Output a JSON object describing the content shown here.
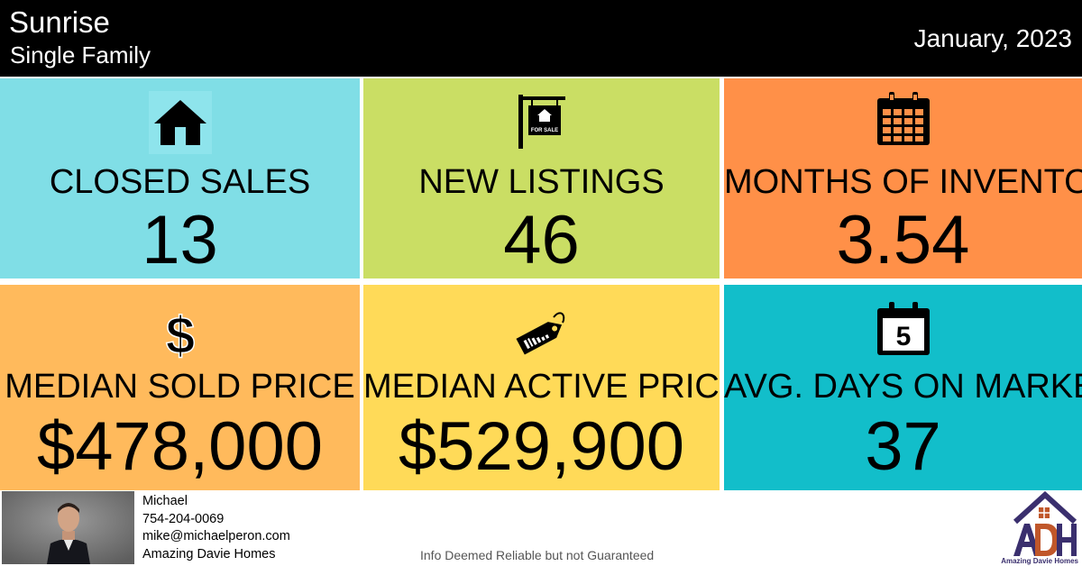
{
  "header": {
    "city": "Sunrise",
    "property_type": "Single Family",
    "period": "January, 2023"
  },
  "colors": {
    "header_bg": "#000000",
    "closed_sales_bg": "#80DEE6",
    "new_listings_bg": "#CADE64",
    "months_inventory_bg": "#FF9048",
    "median_sold_bg": "#FFBA5C",
    "median_active_bg": "#FFDA58",
    "avg_days_bg": "#12BECA",
    "logo_purple": "#3a2f6e",
    "logo_orange": "#c0572a"
  },
  "stats": [
    {
      "id": "closed-sales",
      "icon": "house-icon",
      "label": "CLOSED SALES",
      "value": "13"
    },
    {
      "id": "new-listings",
      "icon": "for-sale-sign-icon",
      "label": "NEW LISTINGS",
      "value": "46",
      "icon_text": "FOR SALE"
    },
    {
      "id": "months-inventory",
      "icon": "calendar-icon",
      "label": "MONTHS OF INVENTORY",
      "value": "3.54"
    },
    {
      "id": "median-sold-price",
      "icon": "dollar-sign-icon",
      "label": "MEDIAN SOLD PRICE",
      "value": "$478,000",
      "icon_text": "$"
    },
    {
      "id": "median-active-price",
      "icon": "price-tag-icon",
      "label": "MEDIAN ACTIVE PRICE",
      "value": "$529,900"
    },
    {
      "id": "avg-days-market",
      "icon": "calendar-day-icon",
      "label": "AVG. DAYS ON MARKET",
      "value": "37",
      "icon_text": "5"
    }
  ],
  "agent": {
    "name": "Michael",
    "phone": "754-204-0069",
    "email": "mike@michaelperon.com",
    "company": "Amazing Davie Homes"
  },
  "footer": {
    "disclaimer": "Info Deemed Reliable but not Guaranteed",
    "logo_caption": "Amazing Davie Homes"
  }
}
